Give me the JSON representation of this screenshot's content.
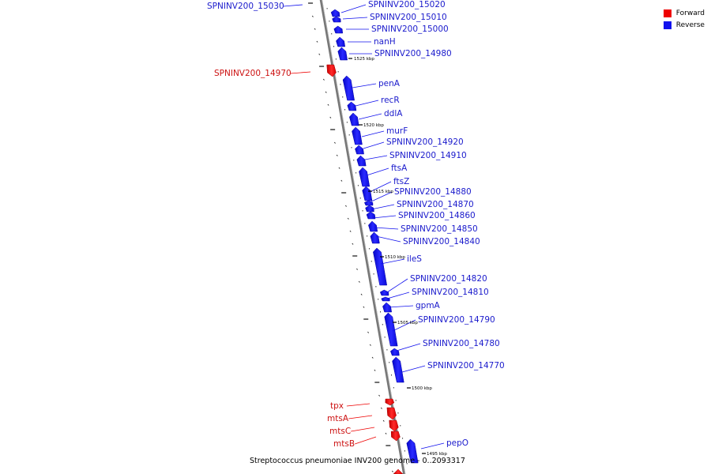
{
  "legend": {
    "forward_label": "Forward",
    "reverse_label": "Reverse",
    "forward_color": "#ee0000",
    "reverse_color": "#1111ee"
  },
  "caption": "Streptococcus pneumoniae INV200 genome - 0..2093317",
  "kbp_marks": [
    "1525 kbp",
    "1520 kbp",
    "1515 kbp",
    "1510 kbp",
    "1505 kbp",
    "1500 kbp",
    "1495 kbp"
  ],
  "genes": [
    {
      "name": "SPNINV200_15030",
      "strand": "reverse"
    },
    {
      "name": "SPNINV200_15020",
      "strand": "reverse"
    },
    {
      "name": "SPNINV200_15010",
      "strand": "reverse"
    },
    {
      "name": "SPNINV200_15000",
      "strand": "reverse"
    },
    {
      "name": "nanH",
      "strand": "reverse"
    },
    {
      "name": "SPNINV200_14980",
      "strand": "reverse"
    },
    {
      "name": "SPNINV200_14970",
      "strand": "forward"
    },
    {
      "name": "penA",
      "strand": "reverse"
    },
    {
      "name": "recR",
      "strand": "reverse"
    },
    {
      "name": "ddlA",
      "strand": "reverse"
    },
    {
      "name": "murF",
      "strand": "reverse"
    },
    {
      "name": "SPNINV200_14920",
      "strand": "reverse"
    },
    {
      "name": "SPNINV200_14910",
      "strand": "reverse"
    },
    {
      "name": "ftsA",
      "strand": "reverse"
    },
    {
      "name": "ftsZ",
      "strand": "reverse"
    },
    {
      "name": "SPNINV200_14880",
      "strand": "reverse"
    },
    {
      "name": "SPNINV200_14870",
      "strand": "reverse"
    },
    {
      "name": "SPNINV200_14860",
      "strand": "reverse"
    },
    {
      "name": "SPNINV200_14850",
      "strand": "reverse"
    },
    {
      "name": "SPNINV200_14840",
      "strand": "reverse"
    },
    {
      "name": "ileS",
      "strand": "reverse"
    },
    {
      "name": "SPNINV200_14820",
      "strand": "reverse"
    },
    {
      "name": "SPNINV200_14810",
      "strand": "reverse"
    },
    {
      "name": "gpmA",
      "strand": "reverse"
    },
    {
      "name": "SPNINV200_14790",
      "strand": "reverse"
    },
    {
      "name": "SPNINV200_14780",
      "strand": "reverse"
    },
    {
      "name": "SPNINV200_14770",
      "strand": "reverse"
    },
    {
      "name": "tpx",
      "strand": "forward"
    },
    {
      "name": "mtsA",
      "strand": "forward"
    },
    {
      "name": "mtsC",
      "strand": "forward"
    },
    {
      "name": "mtsB",
      "strand": "forward"
    },
    {
      "name": "pepO",
      "strand": "reverse"
    }
  ]
}
